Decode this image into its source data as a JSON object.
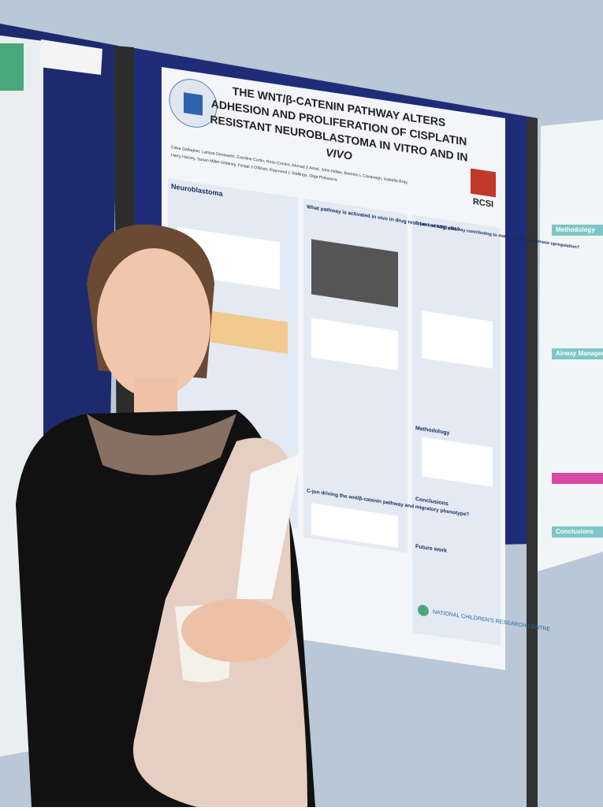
{
  "poster": {
    "title": [
      "THE WNT/β-CATENIN PATHWAY ALTERS",
      "ADHESION AND PROLIFERATION OF CISPLATIN",
      "RESISTANT NEUROBLASTOMA IN VITRO AND IN",
      "VIVO"
    ],
    "logo": "RCSI",
    "authors": [
      "Ciara Gallagher, Larissa Deneweth, Caroline Curtin, Ross Conlon, Ahmad Z Asraf, John Nolan, Brenton L Cavanagh, Isabella Bray,",
      "Harry Harvey, Susan Miller-Delaney, Fergal J O'Brien, Raymond L Stallings, Olga Piskareva"
    ],
    "sections": [
      "Neuroblastoma",
      "What pathway is activated in vivo in drug resistant xenografts?",
      "C-jun and WBC pathway contributing to matrix metalloproteinase upregulation?",
      "C-jun driving the wnt/β-catenin pathway and migratory phenotype?",
      "Methodology",
      "Conclusions",
      "Future work"
    ],
    "footer": "NATIONAL CHILDREN'S RESEARCH CENTRE"
  },
  "right_poster": {
    "sections": [
      "Methodology",
      "Airway Management",
      "Conclusions"
    ]
  }
}
